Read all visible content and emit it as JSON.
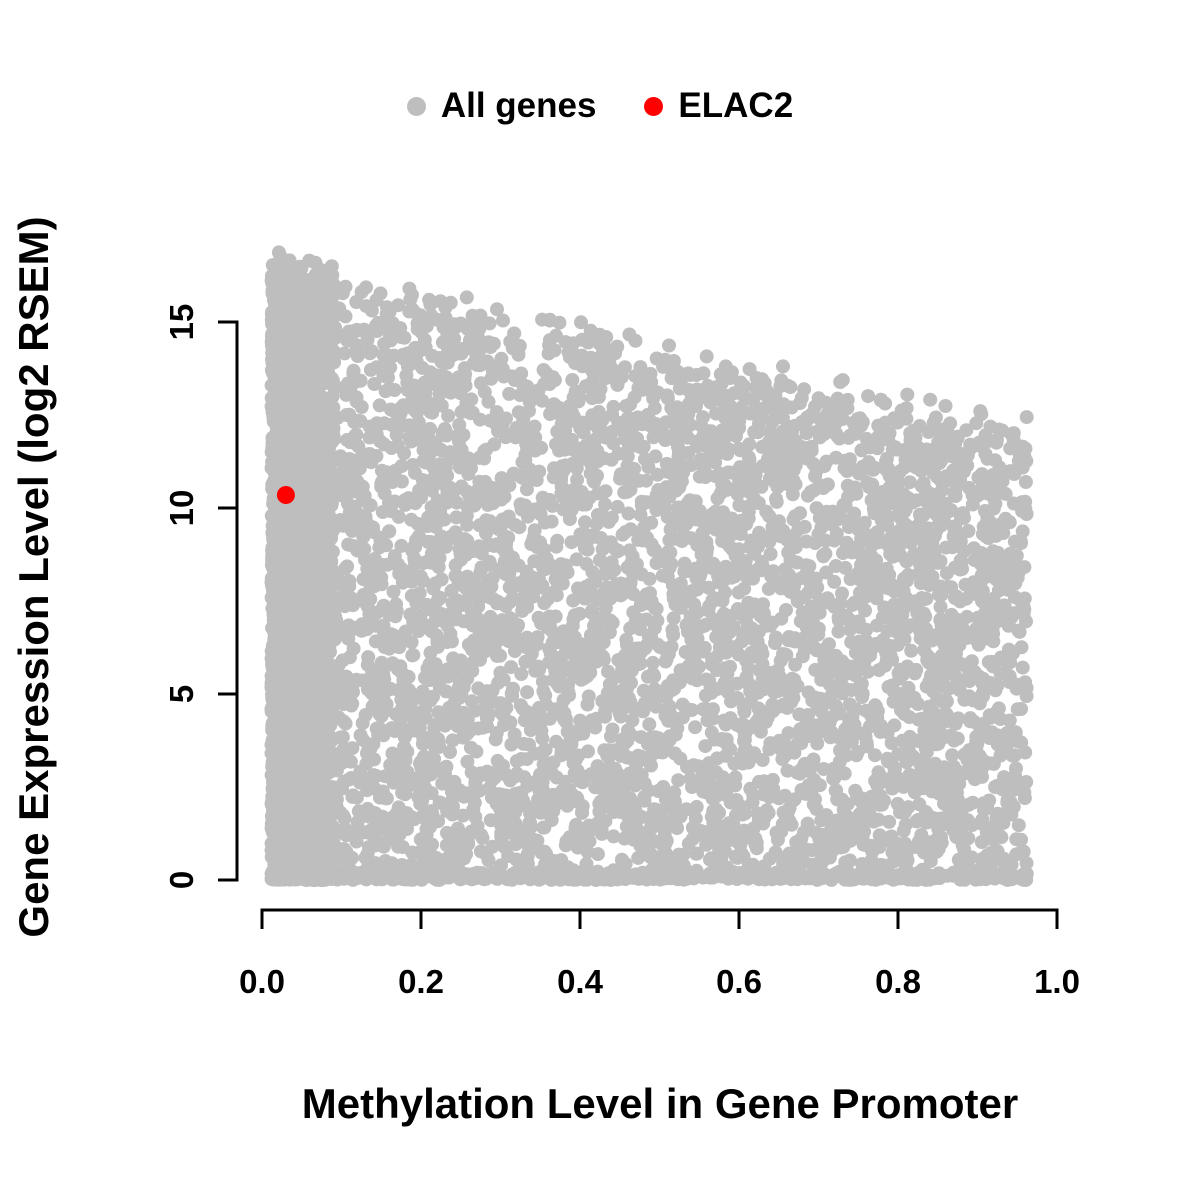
{
  "legend": {
    "items": [
      {
        "label": "All genes",
        "color": "#bebebe"
      },
      {
        "label": "ELAC2",
        "color": "#ff0000"
      }
    ]
  },
  "chart_data": {
    "type": "scatter",
    "title": "",
    "xlabel": "Methylation Level in Gene Promoter",
    "ylabel": "Gene Expression Level (log2 RSEM)",
    "xlim": [
      0.0,
      1.0
    ],
    "ylim": [
      0,
      17
    ],
    "x_ticks": [
      {
        "v": 0.0,
        "label": "0.0"
      },
      {
        "v": 0.2,
        "label": "0.2"
      },
      {
        "v": 0.4,
        "label": "0.4"
      },
      {
        "v": 0.6,
        "label": "0.6"
      },
      {
        "v": 0.8,
        "label": "0.8"
      },
      {
        "v": 1.0,
        "label": "1.0"
      }
    ],
    "y_ticks": [
      {
        "v": 0,
        "label": "0"
      },
      {
        "v": 5,
        "label": "5"
      },
      {
        "v": 10,
        "label": "10"
      },
      {
        "v": 15,
        "label": "15"
      }
    ],
    "grid": false,
    "legend_position": "top",
    "series": [
      {
        "name": "All genes",
        "color": "#bebebe",
        "kind": "generated-cloud",
        "n": 7500,
        "seed": 42,
        "x_min": 0.012,
        "x_max": 0.962,
        "stripe_fraction": 0.3,
        "stripe_x_max": 0.09,
        "envelope_intercept": 16.6,
        "envelope_slope": -4.8,
        "envelope_jitter": 1.0,
        "baseline_fraction": 0.08,
        "y_power": 1.05
      },
      {
        "name": "ELAC2",
        "color": "#ff0000",
        "kind": "points",
        "points": [
          [
            0.03,
            10.35
          ]
        ]
      }
    ]
  }
}
